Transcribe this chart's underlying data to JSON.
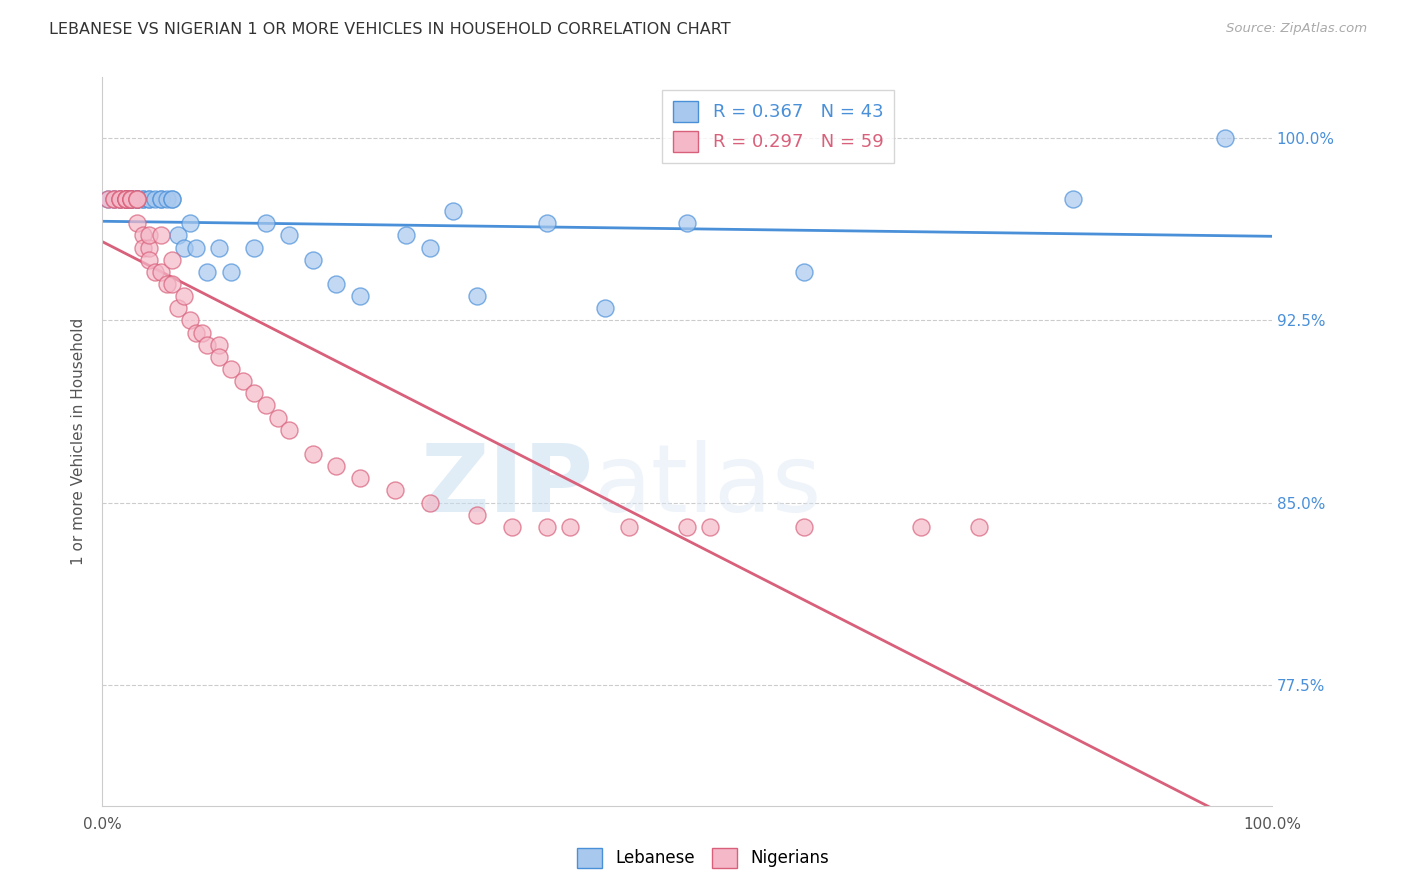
{
  "title": "LEBANESE VS NIGERIAN 1 OR MORE VEHICLES IN HOUSEHOLD CORRELATION CHART",
  "source": "Source: ZipAtlas.com",
  "ylabel": "1 or more Vehicles in Household",
  "legend_labels": [
    "Lebanese",
    "Nigerians"
  ],
  "r_lebanese": 0.367,
  "n_lebanese": 43,
  "r_nigerian": 0.297,
  "n_nigerian": 59,
  "ytick_labels": [
    "77.5%",
    "85.0%",
    "92.5%",
    "100.0%"
  ],
  "ytick_values": [
    0.775,
    0.85,
    0.925,
    1.0
  ],
  "xlim": [
    0.0,
    1.0
  ],
  "ylim": [
    0.725,
    1.025
  ],
  "color_lebanese": "#a8c8ee",
  "color_nigerian": "#f4b8c8",
  "color_line_lebanese": "#4a90d9",
  "color_line_nigerian": "#d9607a",
  "color_ytick_right": "#4a90d9",
  "watermark_zip": "ZIP",
  "watermark_atlas": "atlas",
  "lebanese_x": [
    0.005,
    0.01,
    0.015,
    0.02,
    0.02,
    0.025,
    0.025,
    0.03,
    0.03,
    0.03,
    0.035,
    0.035,
    0.04,
    0.04,
    0.045,
    0.05,
    0.05,
    0.055,
    0.06,
    0.06,
    0.065,
    0.07,
    0.075,
    0.08,
    0.09,
    0.1,
    0.11,
    0.13,
    0.14,
    0.16,
    0.18,
    0.2,
    0.22,
    0.26,
    0.28,
    0.3,
    0.32,
    0.38,
    0.43,
    0.5,
    0.6,
    0.83,
    0.96
  ],
  "lebanese_y": [
    0.975,
    0.975,
    0.975,
    0.975,
    0.975,
    0.975,
    0.975,
    0.975,
    0.975,
    0.975,
    0.975,
    0.975,
    0.975,
    0.975,
    0.975,
    0.975,
    0.975,
    0.975,
    0.975,
    0.975,
    0.96,
    0.955,
    0.965,
    0.955,
    0.945,
    0.955,
    0.945,
    0.955,
    0.965,
    0.96,
    0.95,
    0.94,
    0.935,
    0.96,
    0.955,
    0.97,
    0.935,
    0.965,
    0.93,
    0.965,
    0.945,
    0.975,
    1.0
  ],
  "nigerian_x": [
    0.005,
    0.01,
    0.01,
    0.015,
    0.015,
    0.015,
    0.02,
    0.02,
    0.02,
    0.02,
    0.02,
    0.025,
    0.025,
    0.025,
    0.025,
    0.03,
    0.03,
    0.03,
    0.03,
    0.035,
    0.035,
    0.04,
    0.04,
    0.04,
    0.045,
    0.05,
    0.05,
    0.055,
    0.06,
    0.06,
    0.065,
    0.07,
    0.075,
    0.08,
    0.085,
    0.09,
    0.1,
    0.1,
    0.11,
    0.12,
    0.13,
    0.14,
    0.15,
    0.16,
    0.18,
    0.2,
    0.22,
    0.25,
    0.28,
    0.32,
    0.35,
    0.38,
    0.4,
    0.45,
    0.5,
    0.52,
    0.6,
    0.7,
    0.75
  ],
  "nigerian_y": [
    0.975,
    0.975,
    0.975,
    0.975,
    0.975,
    0.975,
    0.975,
    0.975,
    0.975,
    0.975,
    0.975,
    0.975,
    0.975,
    0.975,
    0.975,
    0.975,
    0.975,
    0.975,
    0.965,
    0.96,
    0.955,
    0.955,
    0.95,
    0.96,
    0.945,
    0.96,
    0.945,
    0.94,
    0.94,
    0.95,
    0.93,
    0.935,
    0.925,
    0.92,
    0.92,
    0.915,
    0.915,
    0.91,
    0.905,
    0.9,
    0.895,
    0.89,
    0.885,
    0.88,
    0.87,
    0.865,
    0.86,
    0.855,
    0.85,
    0.845,
    0.84,
    0.84,
    0.84,
    0.84,
    0.84,
    0.84,
    0.84,
    0.84,
    0.84
  ]
}
